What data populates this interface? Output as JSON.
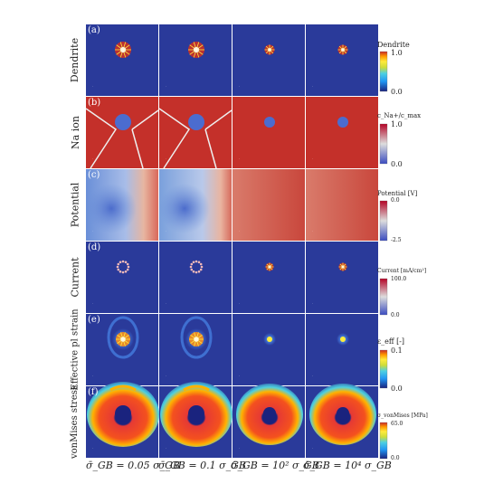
{
  "rows": [
    {
      "letter": "(a)",
      "label": "Dendrite"
    },
    {
      "letter": "(b)",
      "label": "Na ion"
    },
    {
      "letter": "(c)",
      "label": "Potential"
    },
    {
      "letter": "(d)",
      "label": "Current"
    },
    {
      "letter": "(e)",
      "label": "Effective pl strain"
    },
    {
      "letter": "(f)",
      "label": "vonMises stress"
    }
  ],
  "colorbars": [
    {
      "title": "Dendrite",
      "max": "1.0",
      "min": "0.0"
    },
    {
      "title": "c_Na+/c_max",
      "max": "1.0",
      "min": "0.0"
    },
    {
      "title": "Potential [V]",
      "max": "0.0",
      "min": "-2.5"
    },
    {
      "title": "Current [mA/cm²]",
      "max": "100.0",
      "min": "0.0"
    },
    {
      "title": "ε_eff [-]",
      "max": "0.1",
      "min": "0.0"
    },
    {
      "title": "σ_vonMises [MPa]",
      "max": "65.0",
      "min": "0.0"
    }
  ],
  "columns": [
    "σ̄_GB = 0.05 σ_GB",
    "σ̄_GB = 0.1 σ_GB",
    "σ̄_GB = 10² σ_GB",
    "σ̄_GB = 10⁴ σ_GB"
  ],
  "colors": {
    "deep_blue": "#2a3a9a",
    "red": "#c4302a",
    "orange": "#f08a22",
    "cyan": "#43c9d8"
  }
}
